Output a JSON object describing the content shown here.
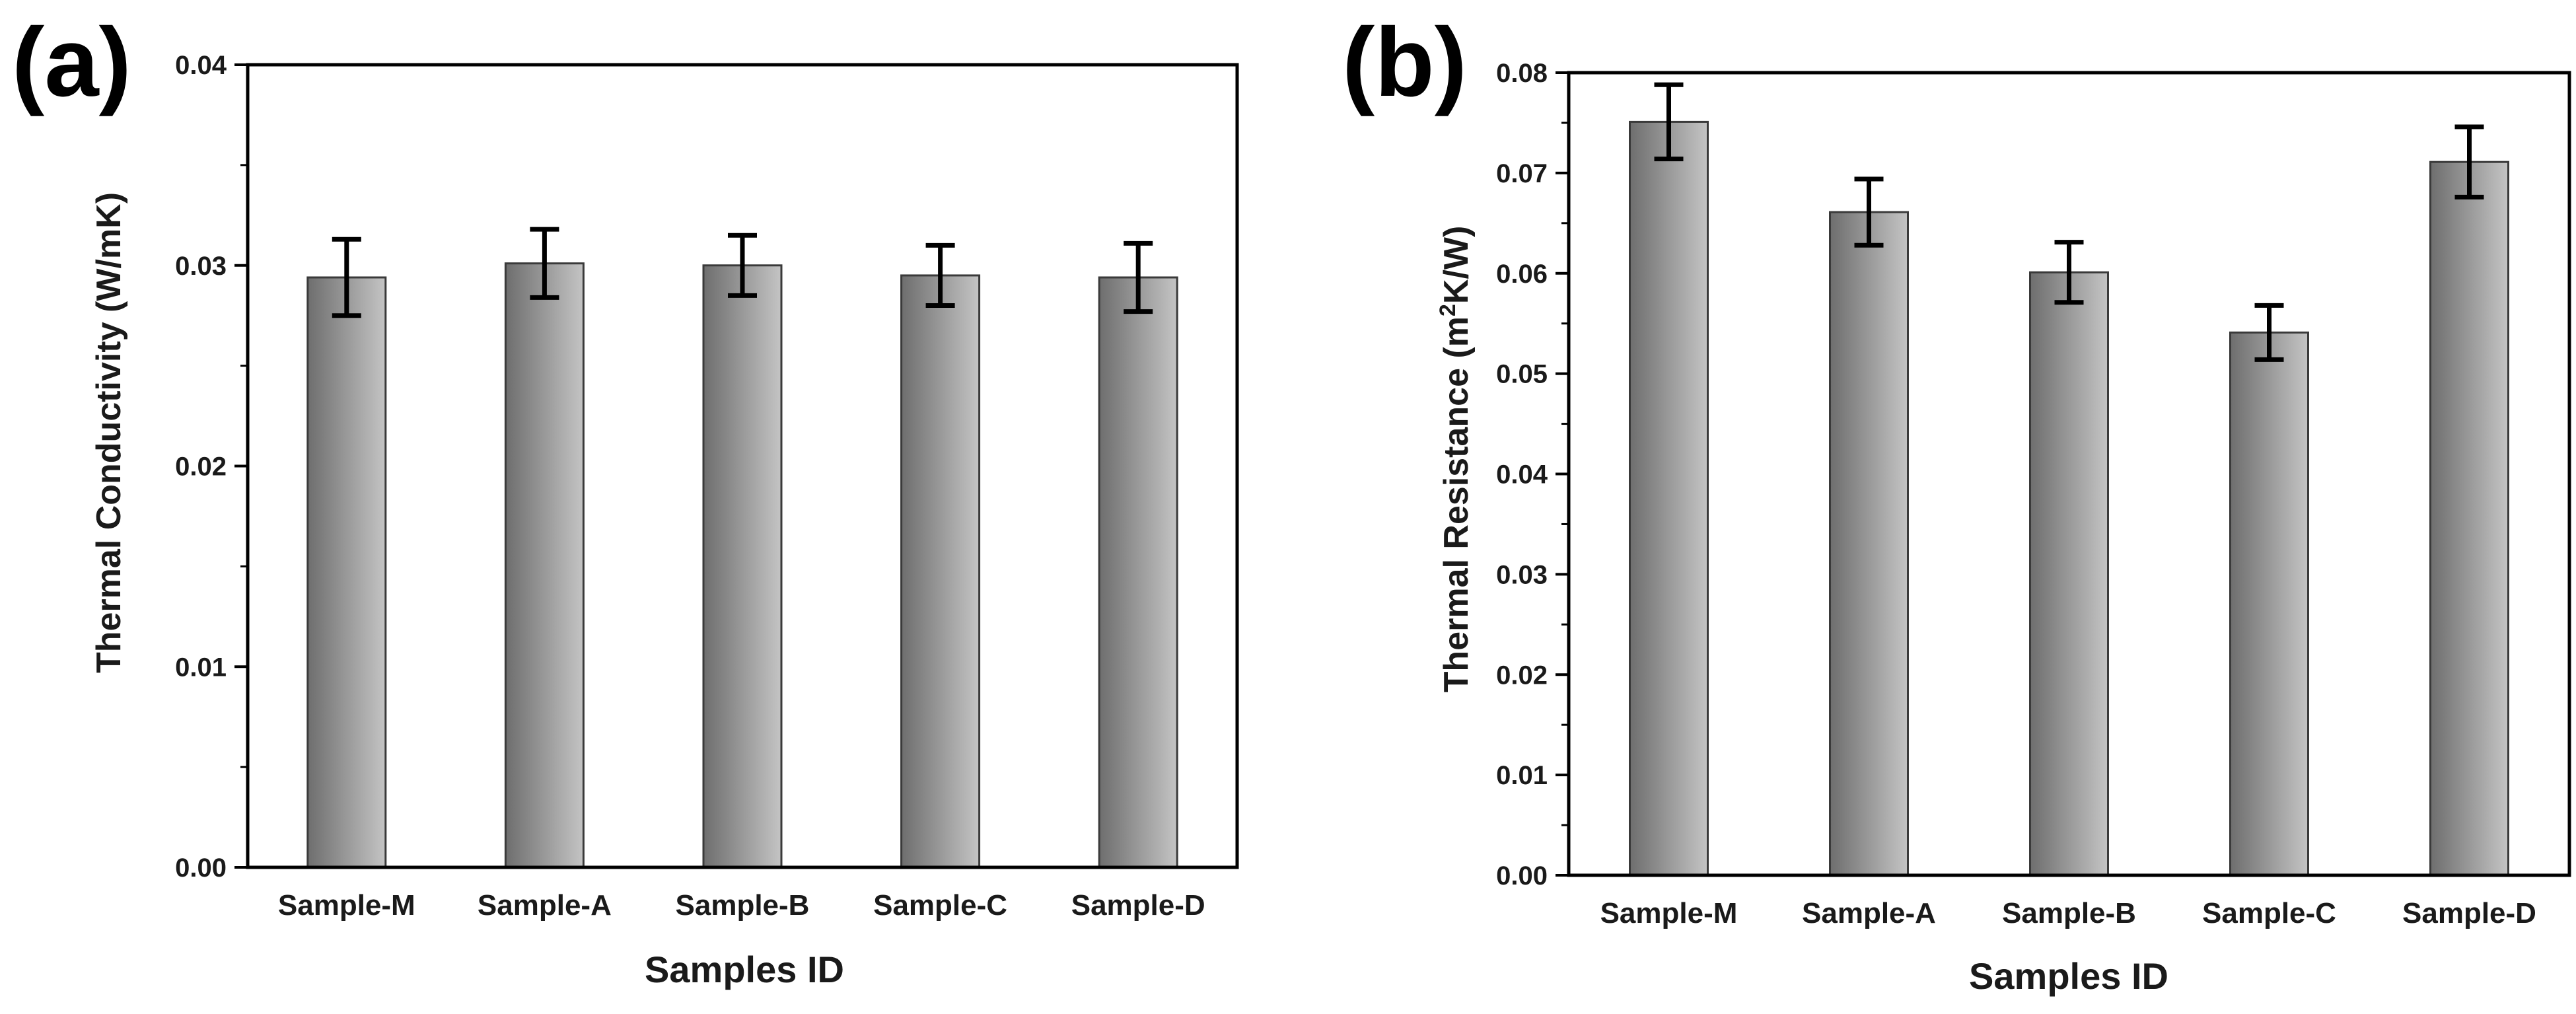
{
  "colors": {
    "bar_dark": "#6e6e6e",
    "bar_light": "#c4c4c4",
    "bar_stroke": "#3a3a3a",
    "axis": "#000000",
    "error": "#000000"
  },
  "chart_data": [
    {
      "panel_label": "(a)",
      "type": "bar",
      "categories": [
        "Sample-M",
        "Sample-A",
        "Sample-B",
        "Sample-C",
        "Sample-D"
      ],
      "values": [
        0.0294,
        0.0301,
        0.03,
        0.0295,
        0.0294
      ],
      "errors": [
        0.0019,
        0.0017,
        0.0015,
        0.0015,
        0.0017
      ],
      "xlabel": "Samples ID",
      "ylabel": "Thermal Conductivity (W/mK)",
      "ylim": [
        0,
        0.04
      ],
      "yticks": [
        "0.00",
        "0.01",
        "0.02",
        "0.03",
        "0.04"
      ],
      "legend": "none",
      "grid": false
    },
    {
      "panel_label": "(b)",
      "type": "bar",
      "categories": [
        "Sample-M",
        "Sample-A",
        "Sample-B",
        "Sample-C",
        "Sample-D"
      ],
      "values": [
        0.0751,
        0.0661,
        0.0601,
        0.0541,
        0.0711
      ],
      "errors": [
        0.0037,
        0.0033,
        0.003,
        0.0027,
        0.0035
      ],
      "xlabel": "Samples ID",
      "ylabel_prefix": "Thermal Resistance (m",
      "ylabel_sup": "2",
      "ylabel_suffix": "K/W)",
      "ylim": [
        0,
        0.08
      ],
      "yticks": [
        "0.00",
        "0.01",
        "0.02",
        "0.03",
        "0.04",
        "0.05",
        "0.06",
        "0.07",
        "0.08"
      ],
      "legend": "none",
      "grid": false
    }
  ]
}
